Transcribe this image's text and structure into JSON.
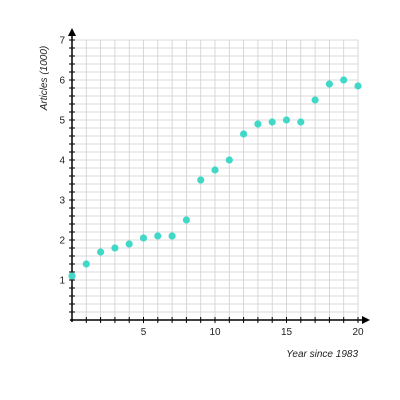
{
  "chart_data": {
    "type": "scatter",
    "title": "",
    "xlabel": "Year since 1983",
    "ylabel": "Articles (1000)",
    "xlim": [
      0,
      20
    ],
    "ylim": [
      0,
      7
    ],
    "x_ticks": [
      5,
      10,
      15,
      20
    ],
    "y_ticks": [
      1,
      2,
      3,
      4,
      5,
      6,
      7
    ],
    "grid": true,
    "grid_minor_step_x": 1,
    "grid_minor_step_y": 0.2,
    "point_color": "#40d9c8",
    "grid_color": "#cfcfcf",
    "axis_color": "#000000",
    "points": [
      {
        "x": 0,
        "y": 1.1
      },
      {
        "x": 1,
        "y": 1.4
      },
      {
        "x": 2,
        "y": 1.7
      },
      {
        "x": 3,
        "y": 1.8
      },
      {
        "x": 4,
        "y": 1.9
      },
      {
        "x": 5,
        "y": 2.05
      },
      {
        "x": 6,
        "y": 2.1
      },
      {
        "x": 7,
        "y": 2.1
      },
      {
        "x": 8,
        "y": 2.5
      },
      {
        "x": 9,
        "y": 3.5
      },
      {
        "x": 10,
        "y": 3.75
      },
      {
        "x": 11,
        "y": 4.0
      },
      {
        "x": 12,
        "y": 4.65
      },
      {
        "x": 13,
        "y": 4.9
      },
      {
        "x": 14,
        "y": 4.95
      },
      {
        "x": 15,
        "y": 5.0
      },
      {
        "x": 16,
        "y": 4.95
      },
      {
        "x": 17,
        "y": 5.5
      },
      {
        "x": 18,
        "y": 5.9
      },
      {
        "x": 19,
        "y": 6.0
      },
      {
        "x": 20,
        "y": 5.85
      }
    ]
  }
}
